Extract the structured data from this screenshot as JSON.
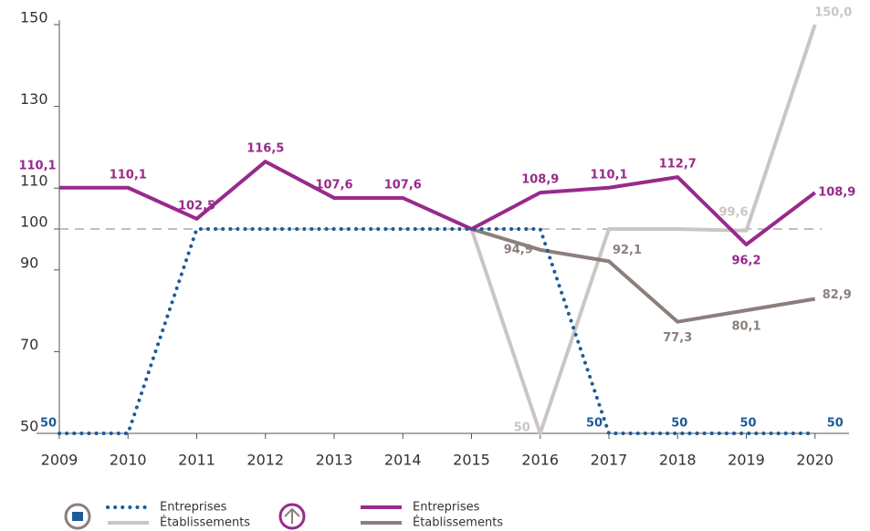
{
  "chart_data": {
    "type": "line",
    "categories": [
      "2009",
      "2010",
      "2011",
      "2012",
      "2013",
      "2014",
      "2015",
      "2016",
      "2017",
      "2018",
      "2019",
      "2020"
    ],
    "ylim": [
      50,
      150
    ],
    "yticks": [
      50,
      70,
      90,
      100,
      110,
      130,
      150
    ],
    "reference_line": 100,
    "series": [
      {
        "name": "Entreprises",
        "color": "#1d5b98",
        "style": "dotted",
        "values": [
          50,
          50,
          100,
          100,
          100,
          100,
          100,
          100,
          50,
          50,
          50,
          50
        ],
        "value_labels": [
          "50",
          null,
          null,
          null,
          null,
          null,
          null,
          null,
          "50",
          "50",
          "50",
          "50"
        ]
      },
      {
        "name": "Établissements",
        "color": "#cbc5c5",
        "style": "solid",
        "values": [
          null,
          null,
          null,
          null,
          null,
          null,
          100,
          50,
          100,
          100,
          99.6,
          150
        ],
        "value_labels": [
          null,
          null,
          null,
          null,
          null,
          null,
          null,
          "50",
          null,
          null,
          "99,6",
          "150,0"
        ]
      },
      {
        "name": "Entreprises",
        "color": "#982a8b",
        "style": "solid",
        "values": [
          110.1,
          110.1,
          102.5,
          116.5,
          107.6,
          107.6,
          100,
          108.9,
          110.1,
          112.7,
          96.2,
          108.9
        ],
        "value_labels": [
          "110,1",
          "110,1",
          "102,5",
          "116,5",
          "107,6",
          "107,6",
          null,
          "108,9",
          "110,1",
          "112,7",
          "96,2",
          "108,9"
        ]
      },
      {
        "name": "Établissements",
        "color": "#8b7f7c",
        "style": "solid",
        "values": [
          null,
          null,
          null,
          null,
          null,
          null,
          100,
          94.9,
          92.1,
          77.3,
          80.1,
          82.9
        ],
        "value_labels": [
          null,
          null,
          null,
          null,
          null,
          null,
          null,
          "94,9",
          "92,1",
          "77,3",
          "80,1",
          "82,9"
        ]
      }
    ]
  }
}
